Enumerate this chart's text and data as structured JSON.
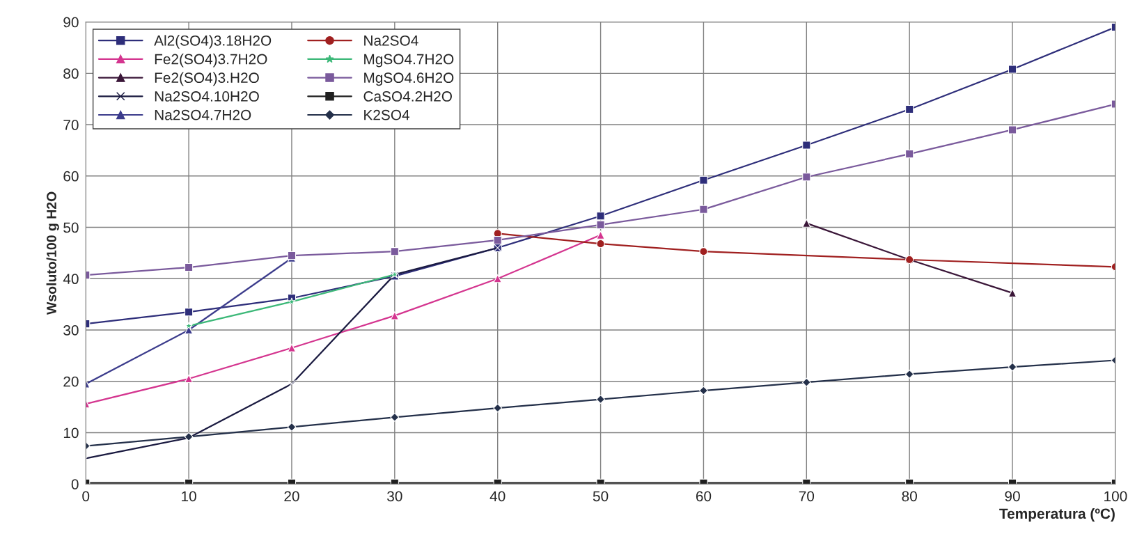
{
  "chart_data": {
    "type": "line",
    "xlabel": "Temperatura (ºC)",
    "ylabel": "Wsoluto/100 g H2O",
    "xlim": [
      0,
      100
    ],
    "ylim": [
      0,
      90
    ],
    "xticks": [
      0,
      10,
      20,
      30,
      40,
      50,
      60,
      70,
      80,
      90,
      100
    ],
    "yticks": [
      0,
      10,
      20,
      30,
      40,
      50,
      60,
      70,
      80,
      90
    ],
    "grid": true,
    "legend": "top left",
    "series": [
      {
        "name": "Al2(SO4)3.18H2O",
        "color": "#2e2e7a",
        "marker": "square",
        "x": [
          0,
          10,
          20,
          30,
          40,
          50,
          60,
          70,
          80,
          90,
          100
        ],
        "values": [
          31.2,
          33.5,
          36.2,
          40.5,
          46,
          52.2,
          59.2,
          66,
          73,
          80.8,
          89
        ]
      },
      {
        "name": "Fe2(SO4)3.7H2O",
        "color": "#d4358f",
        "marker": "triangle",
        "x": [
          0,
          10,
          20,
          30,
          40,
          50
        ],
        "values": [
          15.6,
          20.5,
          26.5,
          32.8,
          40,
          48.5
        ]
      },
      {
        "name": "Fe2(SO4)3.H2O",
        "color": "#3a1638",
        "marker": "triangle",
        "x": [
          70,
          80,
          90
        ],
        "values": [
          50.8,
          43.7,
          37.2
        ]
      },
      {
        "name": "Na2SO4.10H2O",
        "color": "#1a1a40",
        "marker": "cross",
        "x": [
          0,
          10,
          20,
          30,
          40
        ],
        "values": [
          5,
          9,
          19.5,
          40.8,
          46
        ]
      },
      {
        "name": "Na2SO4.7H2O",
        "color": "#3c3c8c",
        "marker": "triangle",
        "x": [
          0,
          10,
          20
        ],
        "values": [
          19.5,
          30,
          44
        ]
      },
      {
        "name": "Na2SO4",
        "color": "#a02020",
        "marker": "circle",
        "x": [
          40,
          50,
          60,
          80,
          100
        ],
        "values": [
          48.8,
          46.8,
          45.3,
          43.7,
          42.3
        ]
      },
      {
        "name": "MgSO4.7H2O",
        "color": "#3cb878",
        "marker": "star",
        "x": [
          10,
          20,
          30
        ],
        "values": [
          30.8,
          35.5,
          40.8
        ]
      },
      {
        "name": "MgSO4.6H2O",
        "color": "#7a5a9c",
        "marker": "square",
        "x": [
          0,
          10,
          20,
          30,
          40,
          50,
          60,
          70,
          80,
          90,
          100
        ],
        "values": [
          40.7,
          42.2,
          44.5,
          45.3,
          47.5,
          50.5,
          53.5,
          59.8,
          64.3,
          69,
          74
        ]
      },
      {
        "name": "CaSO4.2H2O",
        "color": "#202020",
        "marker": "square",
        "x": [
          0,
          10,
          20,
          30,
          40,
          50,
          60,
          70,
          80,
          90,
          100
        ],
        "values": [
          0.2,
          0.2,
          0.2,
          0.2,
          0.2,
          0.2,
          0.2,
          0.2,
          0.2,
          0.2,
          0.2
        ]
      },
      {
        "name": "K2SO4",
        "color": "#24304a",
        "marker": "diamond",
        "x": [
          0,
          10,
          20,
          30,
          40,
          50,
          60,
          70,
          80,
          90,
          100
        ],
        "values": [
          7.4,
          9.2,
          11.1,
          13,
          14.8,
          16.5,
          18.2,
          19.8,
          21.4,
          22.8,
          24.1
        ]
      }
    ]
  }
}
